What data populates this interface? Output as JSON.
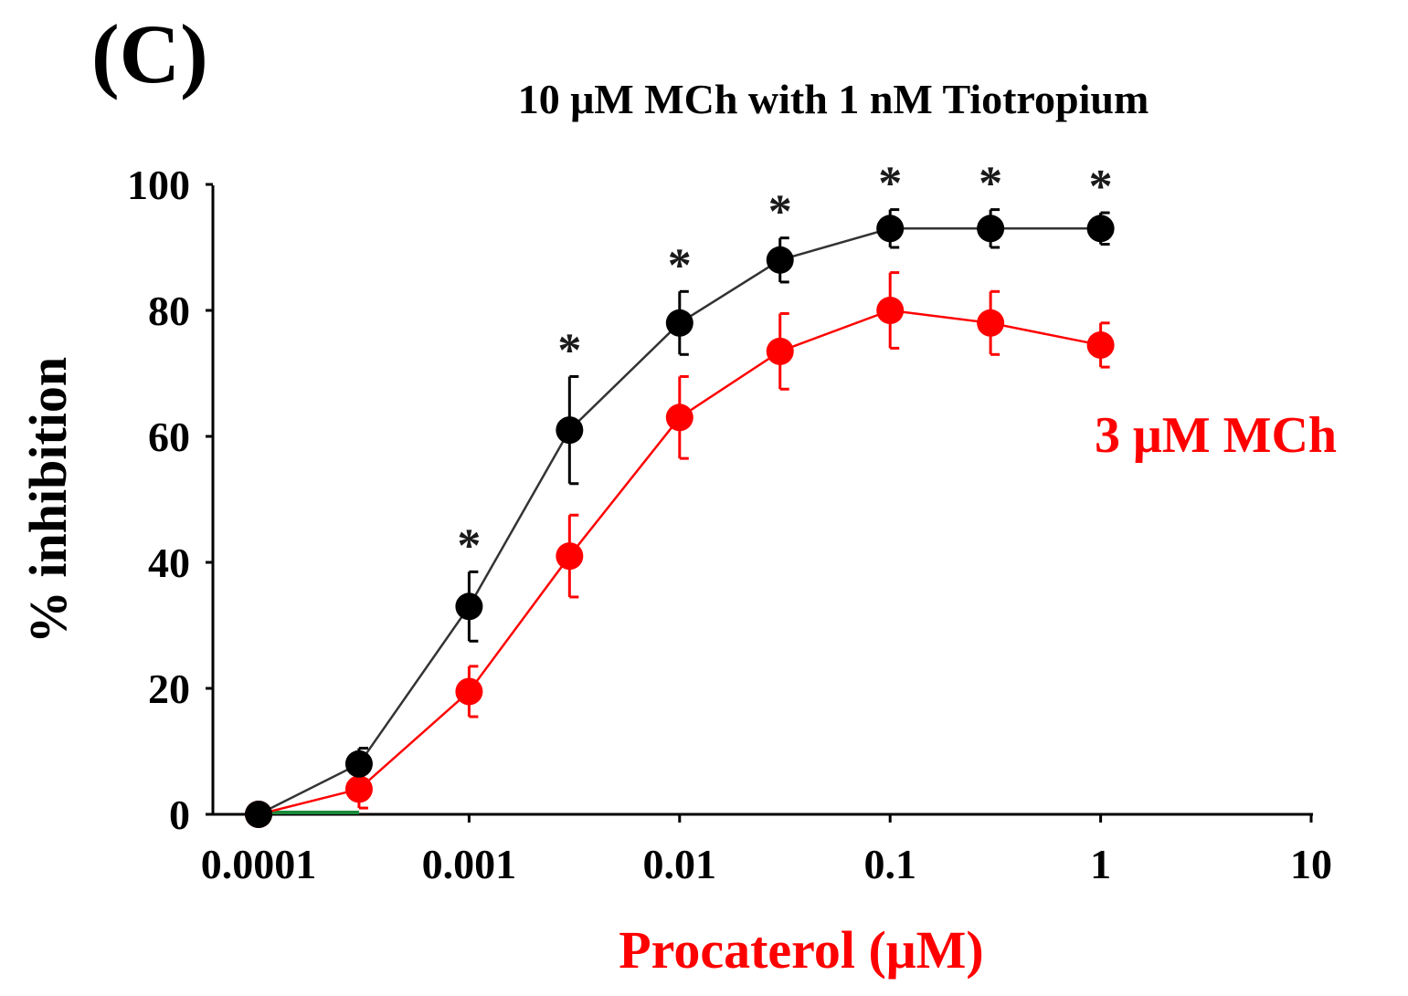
{
  "chart_data": {
    "type": "line",
    "panel_label": "(C)",
    "title": "10 μM MCh with  1 nM Tiotropium",
    "xlabel": "Procaterol (μM)",
    "ylabel": "% inhibition",
    "x_scale": "log",
    "xlim": [
      0.0001,
      10
    ],
    "ylim": [
      0,
      100
    ],
    "x_ticks": [
      0.0001,
      0.001,
      0.01,
      0.1,
      1,
      10
    ],
    "x_tick_labels": [
      "0.0001",
      "0.001",
      "0.01",
      "0.1",
      "1",
      "10"
    ],
    "y_ticks": [
      0,
      20,
      40,
      60,
      80,
      100
    ],
    "y_tick_labels": [
      "0",
      "20",
      "40",
      "60",
      "80",
      "100"
    ],
    "grid": false,
    "x": [
      0.0001,
      0.0003,
      0.001,
      0.003,
      0.01,
      0.03,
      0.1,
      0.3,
      1
    ],
    "series": [
      {
        "color": "#000000",
        "values": [
          0,
          8,
          33,
          61,
          78,
          88,
          93,
          93,
          93
        ],
        "errors": [
          0,
          2.5,
          5.5,
          8.5,
          5,
          3.5,
          3,
          3,
          2.5
        ]
      },
      {
        "name": "3 μM MCh",
        "color": "#ff0000",
        "values": [
          0,
          4,
          19.5,
          41,
          63,
          73.5,
          80,
          78,
          74.5
        ],
        "errors": [
          0,
          3,
          4,
          6.5,
          6.5,
          6,
          6,
          5,
          3.5
        ]
      }
    ],
    "significance_marker": "*",
    "significance_x": [
      0.001,
      0.003,
      0.01,
      0.03,
      0.1,
      0.3,
      1
    ],
    "marker_color_significance": "#1a1a1a"
  }
}
